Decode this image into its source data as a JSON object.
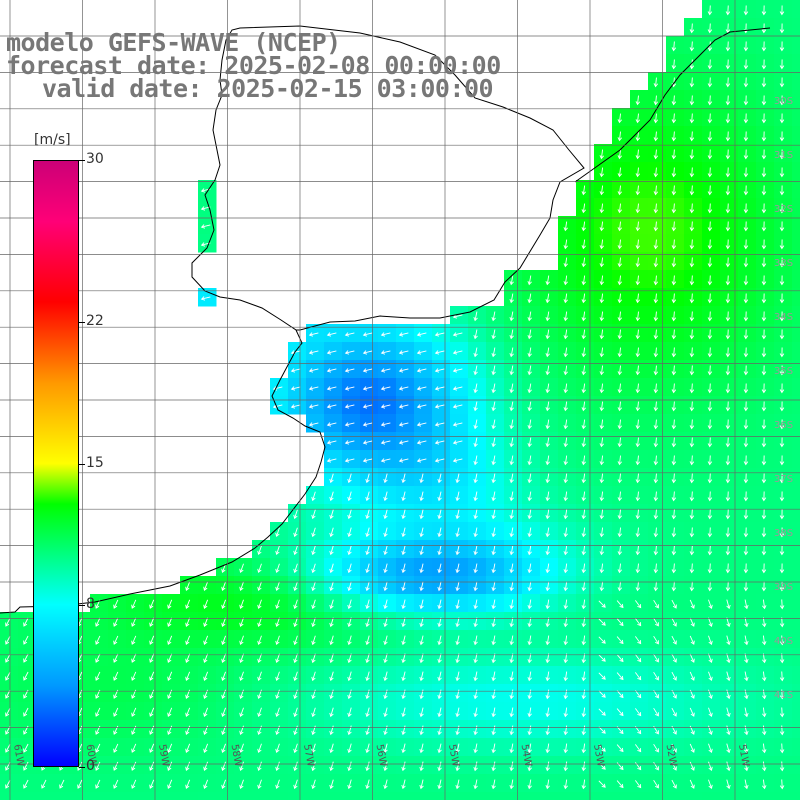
{
  "header": {
    "line1": "modelo GEFS-WAVE (NCEP)",
    "line2": "forecast date: 2025-02-08 00:00:00",
    "line3": "valid date: 2025-02-15 03:00:00"
  },
  "colorbar": {
    "unit": "[m/s]",
    "ticks": [
      "30",
      "22",
      "15",
      "8",
      "0"
    ],
    "tick_values": [
      30,
      22,
      15,
      8,
      0
    ],
    "range": [
      0,
      30
    ],
    "stops": [
      {
        "value": 0,
        "color": "#0000ff"
      },
      {
        "value": 4,
        "color": "#0099ff"
      },
      {
        "value": 8,
        "color": "#00ffff"
      },
      {
        "value": 11,
        "color": "#00ff66"
      },
      {
        "value": 13,
        "color": "#00ff00"
      },
      {
        "value": 15,
        "color": "#ffff00"
      },
      {
        "value": 19,
        "color": "#ff9900"
      },
      {
        "value": 23,
        "color": "#ff0000"
      },
      {
        "value": 27,
        "color": "#ff0077"
      },
      {
        "value": 30,
        "color": "#cc0077"
      }
    ]
  },
  "map": {
    "variable": "wind speed",
    "longitude_labels": [
      "61W",
      "60W",
      "59W",
      "58W",
      "57W",
      "56W",
      "55W",
      "54W",
      "53W",
      "52W",
      "51W"
    ],
    "latitude_labels": [
      "30S",
      "31S",
      "32S",
      "33S",
      "34S",
      "35S",
      "36S",
      "37S",
      "38S",
      "39S",
      "40S",
      "41S"
    ],
    "colors": {
      "land": "#ffffff",
      "coastline": "#000000",
      "grid": "#666666",
      "arrows": "#ffffff"
    }
  }
}
